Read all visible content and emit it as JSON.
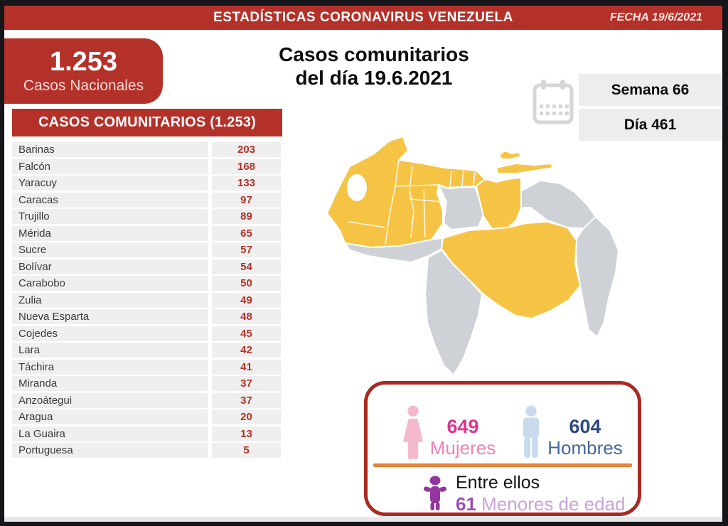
{
  "banner": {
    "title": "ESTADÍSTICAS CORONAVIRUS VENEZUELA",
    "date_label": "FECHA 19/6/2021"
  },
  "national_box": {
    "value": "1.253",
    "label": "Casos Nacionales"
  },
  "main_title": {
    "line1": "Casos comunitarios",
    "line2": "del día 19.6.2021"
  },
  "calendar": {
    "week_label": "Semana 66",
    "day_label": "Día 461"
  },
  "table": {
    "header": "CASOS COMUNITARIOS (1.253)",
    "rows": [
      {
        "state": "Barinas",
        "value": "203"
      },
      {
        "state": "Falcón",
        "value": "168"
      },
      {
        "state": "Yaracuy",
        "value": "133"
      },
      {
        "state": "Caracas",
        "value": "97"
      },
      {
        "state": "Trujillo",
        "value": "89"
      },
      {
        "state": "Mérida",
        "value": "65"
      },
      {
        "state": "Sucre",
        "value": "57"
      },
      {
        "state": "Bolívar",
        "value": "54"
      },
      {
        "state": "Carabobo",
        "value": "50"
      },
      {
        "state": "Zulia",
        "value": "49"
      },
      {
        "state": "Nueva Esparta",
        "value": "48"
      },
      {
        "state": "Cojedes",
        "value": "45"
      },
      {
        "state": "Lara",
        "value": "42"
      },
      {
        "state": "Táchira",
        "value": "41"
      },
      {
        "state": "Miranda",
        "value": "37"
      },
      {
        "state": "Anzoátegui",
        "value": "37"
      },
      {
        "state": "Aragua",
        "value": "20"
      },
      {
        "state": "La Guaira",
        "value": "13"
      },
      {
        "state": "Portuguesa",
        "value": "5"
      }
    ]
  },
  "chart_data": {
    "type": "table",
    "title": "CASOS COMUNITARIOS (1.253)",
    "categories": [
      "Barinas",
      "Falcón",
      "Yaracuy",
      "Caracas",
      "Trujillo",
      "Mérida",
      "Sucre",
      "Bolívar",
      "Carabobo",
      "Zulia",
      "Nueva Esparta",
      "Cojedes",
      "Lara",
      "Táchira",
      "Miranda",
      "Anzoátegui",
      "Aragua",
      "La Guaira",
      "Portuguesa"
    ],
    "values": [
      203,
      168,
      133,
      97,
      89,
      65,
      57,
      54,
      50,
      49,
      48,
      45,
      42,
      41,
      37,
      37,
      20,
      13,
      5
    ],
    "total": 1253,
    "summary": {
      "women": 649,
      "men": 604,
      "minors": 61,
      "week": 66,
      "day": 461
    }
  },
  "demographics": {
    "women": {
      "value": "649",
      "label": "Mujeres"
    },
    "men": {
      "value": "604",
      "label": "Hombres"
    },
    "minors": {
      "intro": "Entre ellos",
      "value": "61",
      "label": "Menores de edad"
    }
  },
  "colors": {
    "frame_black": "#15151a",
    "bottom_strip": "#e8e6e8",
    "brand_red": "#b4312a",
    "value_red": "#b23128",
    "row_gray": "#efefef",
    "bar_gray": "#ededed",
    "calendar_gray": "#d6d6d6",
    "map_yellow": "#f6c445",
    "map_gray": "#ced2d6",
    "box_border_red": "#a82a22",
    "divider_orange": "#e8813a",
    "women_icon_pink": "#f4bacc",
    "women_value_pink": "#e0338f",
    "women_label_pink": "#ee82b4",
    "men_icon_blue": "#c9daee",
    "men_value_blue": "#2e4880",
    "men_label_blue": "#44679f",
    "minors_icon_purple": "#93379f",
    "minors_value_purple": "#9c50b0",
    "minors_label_purple": "#c9a3d8"
  }
}
